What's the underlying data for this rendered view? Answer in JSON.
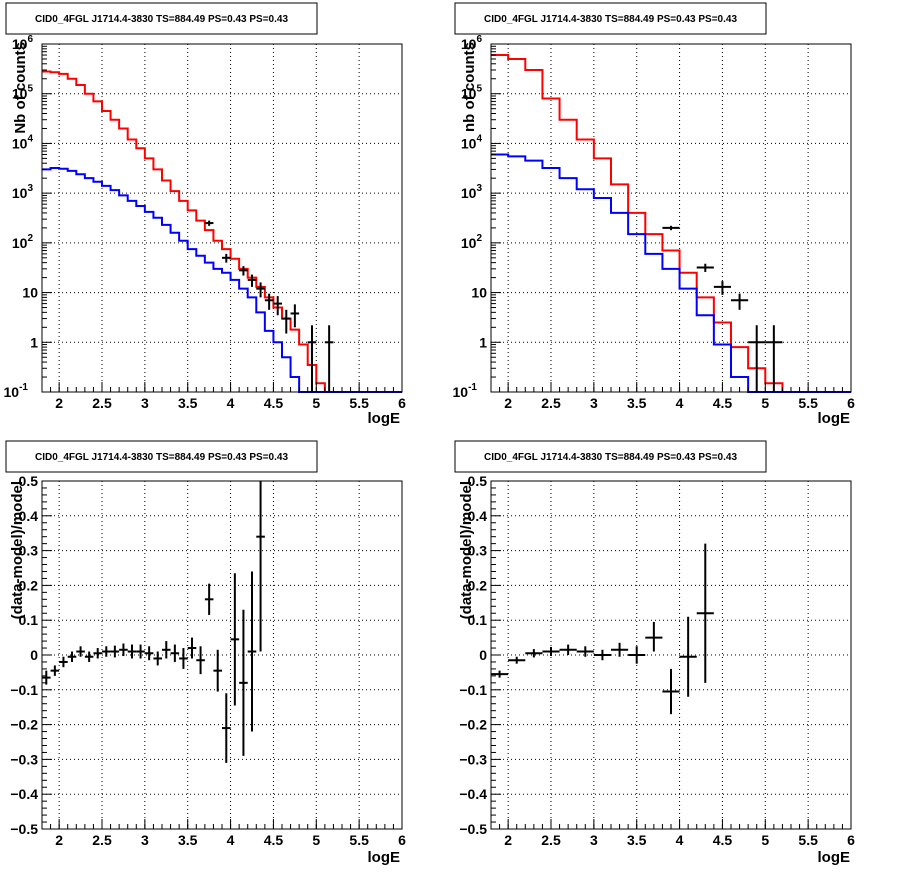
{
  "colors": {
    "model": "#ff0000",
    "background_model": "#0000ff",
    "data": "#000000",
    "grid": "#000000"
  },
  "chart_data": [
    {
      "type": "line",
      "title": "CID0_4FGL J1714.4-3830 TS=884.49 PS=0.43 PS=0.43",
      "xlabel": "logE",
      "ylabel": "Nb of counts",
      "xlim": [
        1.8,
        6.0
      ],
      "ylim": [
        0.1,
        1000000
      ],
      "log_y": true,
      "grid": true,
      "x_ticks": [
        "2",
        "2.5",
        "3",
        "3.5",
        "4",
        "4.5",
        "5",
        "5.5",
        "6"
      ],
      "y_ticks": [
        "10^-1",
        "1",
        "10",
        "10^2",
        "10^3",
        "10^4",
        "10^5",
        "10^6"
      ],
      "bin_width": 0.1,
      "series": [
        {
          "color": "red",
          "x_bins": [
            1.8,
            1.9,
            2.0,
            2.1,
            2.2,
            2.3,
            2.4,
            2.5,
            2.6,
            2.7,
            2.8,
            2.9,
            3.0,
            3.1,
            3.2,
            3.3,
            3.4,
            3.5,
            3.6,
            3.7,
            3.8,
            3.9,
            4.0,
            4.1,
            4.2,
            4.3,
            4.4,
            4.5,
            4.6,
            4.7,
            4.8,
            4.9,
            5.0,
            5.1,
            5.2,
            5.3,
            5.4,
            5.5,
            5.6,
            5.7,
            5.8,
            5.9
          ],
          "values": [
            280000,
            270000,
            250000,
            200000,
            150000,
            100000,
            70000,
            45000,
            30000,
            20000,
            12000,
            8000,
            5000,
            3000,
            1800,
            1100,
            700,
            450,
            280,
            180,
            110,
            75,
            48,
            30,
            20,
            13,
            8,
            5,
            3,
            1.8,
            0.9,
            0.35,
            0.15,
            0.1,
            0.1,
            0.1,
            0.1,
            0.1,
            0.1,
            0.1,
            0.1,
            0.1
          ]
        },
        {
          "color": "blue",
          "x_bins": [
            1.8,
            1.9,
            2.0,
            2.1,
            2.2,
            2.3,
            2.4,
            2.5,
            2.6,
            2.7,
            2.8,
            2.9,
            3.0,
            3.1,
            3.2,
            3.3,
            3.4,
            3.5,
            3.6,
            3.7,
            3.8,
            3.9,
            4.0,
            4.1,
            4.2,
            4.3,
            4.4,
            4.5,
            4.6,
            4.7,
            4.8,
            4.9,
            5.0,
            5.1,
            5.2,
            5.3,
            5.4,
            5.5,
            5.6,
            5.7,
            5.8,
            5.9
          ],
          "values": [
            3000,
            3200,
            3100,
            2800,
            2400,
            2000,
            1700,
            1400,
            1150,
            900,
            700,
            550,
            420,
            320,
            230,
            160,
            110,
            75,
            55,
            40,
            30,
            25,
            18,
            12,
            8,
            4,
            1.7,
            1.0,
            0.5,
            0.2,
            0.1,
            0.1,
            0.1,
            0.1,
            0.1,
            0.1,
            0.1,
            0.1,
            0.1,
            0.1,
            0.1,
            0.1
          ]
        }
      ],
      "data_points": [
        {
          "x": 3.75,
          "y": 250,
          "ylo": 220,
          "yhi": 280
        },
        {
          "x": 3.95,
          "y": 50,
          "ylo": 40,
          "yhi": 60
        },
        {
          "x": 4.15,
          "y": 28,
          "ylo": 22,
          "yhi": 34
        },
        {
          "x": 4.25,
          "y": 18,
          "ylo": 13,
          "yhi": 23
        },
        {
          "x": 4.35,
          "y": 12,
          "ylo": 8,
          "yhi": 16
        },
        {
          "x": 4.45,
          "y": 7,
          "ylo": 4.5,
          "yhi": 9.5
        },
        {
          "x": 4.55,
          "y": 6,
          "ylo": 3.5,
          "yhi": 8.5
        },
        {
          "x": 4.65,
          "y": 3,
          "ylo": 1.5,
          "yhi": 4.5
        },
        {
          "x": 4.75,
          "y": 3.8,
          "ylo": 2.0,
          "yhi": 5.8
        },
        {
          "x": 4.95,
          "y": 1,
          "ylo": 0.1,
          "yhi": 2.2
        },
        {
          "x": 5.15,
          "y": 1,
          "ylo": 0.1,
          "yhi": 2.2
        }
      ]
    },
    {
      "type": "line",
      "title": "CID0_4FGL J1714.4-3830 TS=884.49 PS=0.43 PS=0.43",
      "xlabel": "logE",
      "ylabel": "nb of counts",
      "xlim": [
        1.8,
        6.0
      ],
      "ylim": [
        0.1,
        1000000
      ],
      "log_y": true,
      "grid": true,
      "x_ticks": [
        "2",
        "2.5",
        "3",
        "3.5",
        "4",
        "4.5",
        "5",
        "5.5",
        "6"
      ],
      "y_ticks": [
        "10^-1",
        "1",
        "10",
        "10^2",
        "10^3",
        "10^4",
        "10^5",
        "10^6"
      ],
      "bin_width": 0.2,
      "series": [
        {
          "color": "red",
          "x_bins": [
            1.8,
            2.0,
            2.2,
            2.4,
            2.6,
            2.8,
            3.0,
            3.2,
            3.4,
            3.6,
            3.8,
            4.0,
            4.2,
            4.4,
            4.6,
            4.8,
            5.0,
            5.2,
            5.4,
            5.6,
            5.8
          ],
          "values": [
            600000,
            500000,
            300000,
            80000,
            30000,
            12000,
            5000,
            1500,
            400,
            150,
            70,
            25,
            8,
            2.5,
            0.8,
            0.3,
            0.15,
            0.1,
            0.1,
            0.1,
            0.1
          ]
        },
        {
          "color": "blue",
          "x_bins": [
            1.8,
            2.0,
            2.2,
            2.4,
            2.6,
            2.8,
            3.0,
            3.2,
            3.4,
            3.6,
            3.8,
            4.0,
            4.2,
            4.4,
            4.6,
            4.8,
            5.0,
            5.2,
            5.4,
            5.6,
            5.8
          ],
          "values": [
            6000,
            5500,
            4500,
            3200,
            2000,
            1200,
            800,
            400,
            150,
            60,
            30,
            12,
            3.5,
            0.9,
            0.2,
            0.1,
            0.1,
            0.1,
            0.1,
            0.1,
            0.1
          ]
        }
      ],
      "data_points": [
        {
          "x": 3.9,
          "y": 200,
          "ylo": 180,
          "yhi": 220
        },
        {
          "x": 4.3,
          "y": 32,
          "ylo": 26,
          "yhi": 38
        },
        {
          "x": 4.5,
          "y": 13,
          "ylo": 9,
          "yhi": 17
        },
        {
          "x": 4.7,
          "y": 7,
          "ylo": 4.5,
          "yhi": 9.5
        },
        {
          "x": 4.9,
          "y": 1,
          "ylo": 0.1,
          "yhi": 2.2
        },
        {
          "x": 5.1,
          "y": 1,
          "ylo": 0.1,
          "yhi": 2.2
        }
      ]
    },
    {
      "type": "scatter",
      "title": "CID0_4FGL J1714.4-3830 TS=884.49 PS=0.43 PS=0.43",
      "xlabel": "logE",
      "ylabel": "(data-model)/model",
      "xlim": [
        1.8,
        6.0
      ],
      "ylim": [
        -0.5,
        0.5
      ],
      "grid": true,
      "x_ticks": [
        "2",
        "2.5",
        "3",
        "3.5",
        "4",
        "4.5",
        "5",
        "5.5",
        "6"
      ],
      "y_ticks": [
        "−0.5",
        "−0.4",
        "−0.3",
        "−0.2",
        "−0.1",
        "0",
        "0.1",
        "0.2",
        "0.3",
        "0.4",
        "0.5"
      ],
      "bin_width": 0.1,
      "points": [
        {
          "x": 1.85,
          "y": -0.065,
          "ylo": -0.085,
          "yhi": -0.045
        },
        {
          "x": 1.95,
          "y": -0.045,
          "ylo": -0.06,
          "yhi": -0.03
        },
        {
          "x": 2.05,
          "y": -0.02,
          "ylo": -0.035,
          "yhi": -0.005
        },
        {
          "x": 2.15,
          "y": -0.005,
          "ylo": -0.02,
          "yhi": 0.01
        },
        {
          "x": 2.25,
          "y": 0.01,
          "ylo": -0.005,
          "yhi": 0.025
        },
        {
          "x": 2.35,
          "y": -0.005,
          "ylo": -0.02,
          "yhi": 0.01
        },
        {
          "x": 2.45,
          "y": 0.005,
          "ylo": -0.01,
          "yhi": 0.02
        },
        {
          "x": 2.55,
          "y": 0.01,
          "ylo": -0.005,
          "yhi": 0.025
        },
        {
          "x": 2.65,
          "y": 0.01,
          "ylo": -0.007,
          "yhi": 0.027
        },
        {
          "x": 2.75,
          "y": 0.015,
          "ylo": -0.003,
          "yhi": 0.033
        },
        {
          "x": 2.85,
          "y": 0.01,
          "ylo": -0.01,
          "yhi": 0.03
        },
        {
          "x": 2.95,
          "y": 0.01,
          "ylo": -0.01,
          "yhi": 0.03
        },
        {
          "x": 3.05,
          "y": 0.005,
          "ylo": -0.015,
          "yhi": 0.025
        },
        {
          "x": 3.15,
          "y": -0.01,
          "ylo": -0.03,
          "yhi": 0.01
        },
        {
          "x": 3.25,
          "y": 0.015,
          "ylo": -0.01,
          "yhi": 0.04
        },
        {
          "x": 3.35,
          "y": 0.005,
          "ylo": -0.02,
          "yhi": 0.03
        },
        {
          "x": 3.45,
          "y": -0.01,
          "ylo": -0.04,
          "yhi": 0.02
        },
        {
          "x": 3.55,
          "y": 0.02,
          "ylo": -0.01,
          "yhi": 0.05
        },
        {
          "x": 3.65,
          "y": -0.015,
          "ylo": -0.055,
          "yhi": 0.025
        },
        {
          "x": 3.75,
          "y": 0.16,
          "ylo": 0.115,
          "yhi": 0.205
        },
        {
          "x": 3.85,
          "y": -0.045,
          "ylo": -0.105,
          "yhi": 0.015
        },
        {
          "x": 3.95,
          "y": -0.21,
          "ylo": -0.31,
          "yhi": -0.11
        },
        {
          "x": 4.05,
          "y": 0.045,
          "ylo": -0.145,
          "yhi": 0.235
        },
        {
          "x": 4.15,
          "y": -0.08,
          "ylo": -0.29,
          "yhi": 0.13
        },
        {
          "x": 4.25,
          "y": 0.01,
          "ylo": -0.22,
          "yhi": 0.24
        },
        {
          "x": 4.35,
          "y": 0.34,
          "ylo": 0.01,
          "yhi": 0.5
        }
      ]
    },
    {
      "type": "scatter",
      "title": "CID0_4FGL J1714.4-3830 TS=884.49 PS=0.43 PS=0.43",
      "xlabel": "logE",
      "ylabel": "(data-model)/model",
      "xlim": [
        1.8,
        6.0
      ],
      "ylim": [
        -0.5,
        0.5
      ],
      "grid": true,
      "x_ticks": [
        "2",
        "2.5",
        "3",
        "3.5",
        "4",
        "4.5",
        "5",
        "5.5",
        "6"
      ],
      "y_ticks": [
        "−0.5",
        "−0.4",
        "−0.3",
        "−0.2",
        "−0.1",
        "0",
        "0.1",
        "0.2",
        "0.3",
        "0.4",
        "0.5"
      ],
      "bin_width": 0.2,
      "points": [
        {
          "x": 1.9,
          "y": -0.055,
          "ylo": -0.065,
          "yhi": -0.045
        },
        {
          "x": 2.1,
          "y": -0.015,
          "ylo": -0.025,
          "yhi": -0.005
        },
        {
          "x": 2.3,
          "y": 0.005,
          "ylo": -0.007,
          "yhi": 0.017
        },
        {
          "x": 2.5,
          "y": 0.01,
          "ylo": -0.003,
          "yhi": 0.023
        },
        {
          "x": 2.7,
          "y": 0.015,
          "ylo": 0.0,
          "yhi": 0.03
        },
        {
          "x": 2.9,
          "y": 0.01,
          "ylo": -0.005,
          "yhi": 0.025
        },
        {
          "x": 3.1,
          "y": 0.0,
          "ylo": -0.015,
          "yhi": 0.015
        },
        {
          "x": 3.3,
          "y": 0.015,
          "ylo": -0.005,
          "yhi": 0.035
        },
        {
          "x": 3.5,
          "y": 0.0,
          "ylo": -0.025,
          "yhi": 0.025
        },
        {
          "x": 3.7,
          "y": 0.05,
          "ylo": 0.01,
          "yhi": 0.095
        },
        {
          "x": 3.9,
          "y": -0.105,
          "ylo": -0.17,
          "yhi": -0.04
        },
        {
          "x": 4.1,
          "y": -0.005,
          "ylo": -0.12,
          "yhi": 0.11
        },
        {
          "x": 4.3,
          "y": 0.12,
          "ylo": -0.08,
          "yhi": 0.32
        }
      ]
    }
  ]
}
